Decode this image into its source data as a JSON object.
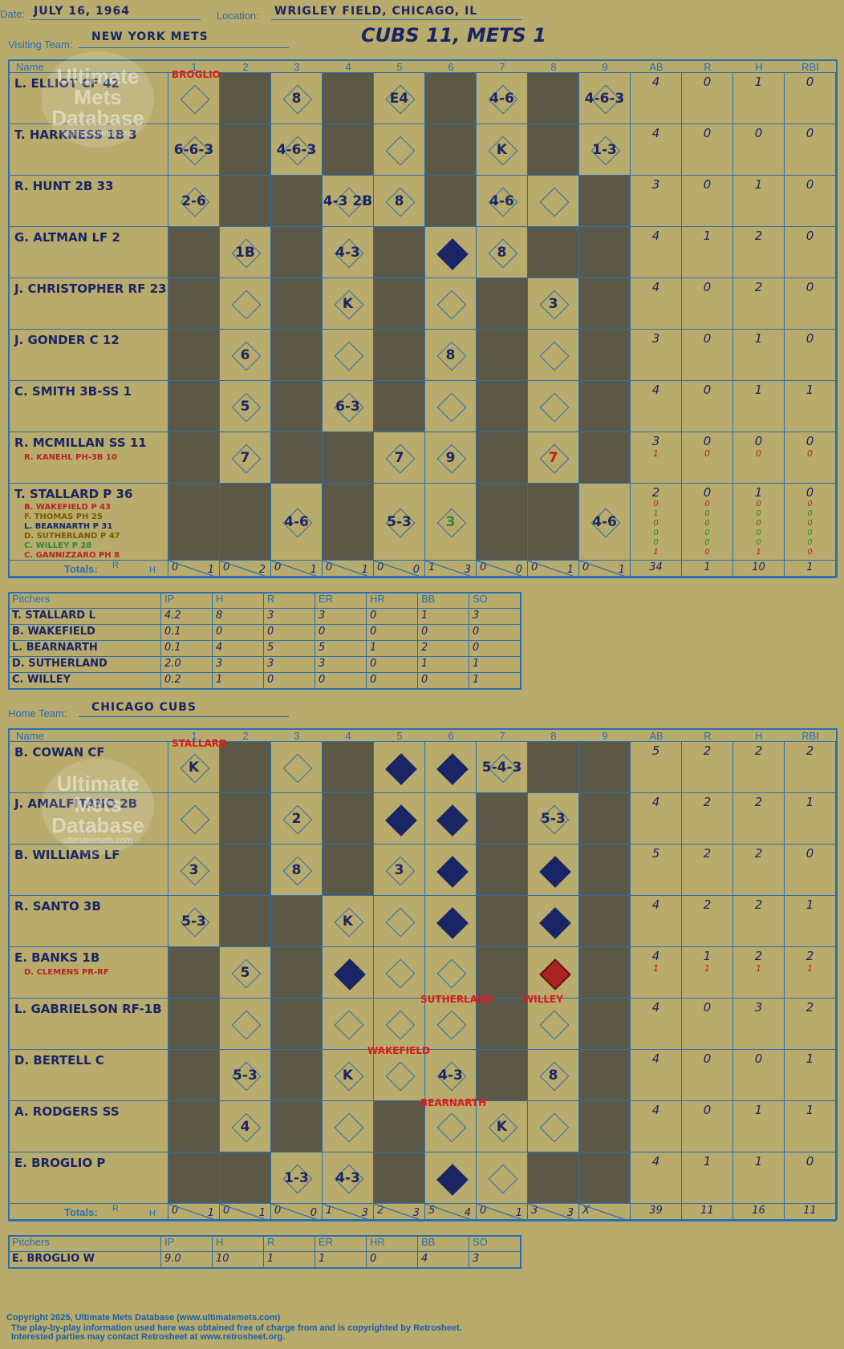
{
  "header": {
    "date_label": "Date:",
    "date": "JULY 16, 1964",
    "location_label": "Location:",
    "location": "WRIGLEY FIELD, CHICAGO, IL",
    "visiting_label": "Visiting Team:",
    "visiting_team": "NEW YORK METS",
    "home_label": "Home Team:",
    "home_team": "CHICAGO CUBS",
    "title": "CUBS 11, METS 1"
  },
  "columns": {
    "name": "Name",
    "innings": [
      "1",
      "2",
      "3",
      "4",
      "5",
      "6",
      "7",
      "8",
      "9"
    ],
    "stats": [
      "AB",
      "R",
      "H",
      "RBI"
    ]
  },
  "totals_label": "Totals:",
  "rh_labels": {
    "r": "R",
    "h": "H"
  },
  "watermark": {
    "line1": "Ultimate",
    "line2": "Mets",
    "line3": "Database",
    "url": "ultimatemets.com"
  },
  "visitors": {
    "starter_red": "BROGLIO",
    "players": [
      {
        "name": "L. ELLIOT CF  42",
        "stats": [
          "4",
          "0",
          "1",
          "0"
        ]
      },
      {
        "name": "T. HARKNESS 1B  3",
        "stats": [
          "4",
          "0",
          "0",
          "0"
        ]
      },
      {
        "name": "R. HUNT 2B  33",
        "stats": [
          "3",
          "0",
          "1",
          "0"
        ]
      },
      {
        "name": "G. ALTMAN LF  2",
        "stats": [
          "4",
          "1",
          "2",
          "0"
        ]
      },
      {
        "name": "J. CHRISTOPHER RF  23",
        "stats": [
          "4",
          "0",
          "2",
          "0"
        ]
      },
      {
        "name": "J. GONDER C  12",
        "stats": [
          "3",
          "0",
          "1",
          "0"
        ]
      },
      {
        "name": "C. SMITH 3B-SS  1",
        "stats": [
          "4",
          "0",
          "1",
          "1"
        ]
      },
      {
        "name": "R. MCMILLAN SS  11",
        "stats": [
          "3",
          "0",
          "0",
          "0"
        ],
        "sub": "R. KANEHL PH-3B  10",
        "sub_stats": [
          "1",
          "0",
          "0",
          "0"
        ]
      },
      {
        "name": "T. STALLARD P  36",
        "stats": [
          "2",
          "0",
          "1",
          "0"
        ],
        "subs": [
          "B. WAKEFIELD P  43",
          "F. THOMAS PH  25",
          "L. BEARNARTH P  31",
          "D. SUTHERLAND P  47",
          "C. WILLEY P  28",
          "C. GANNIZZARO PH  8"
        ],
        "subs_stats": [
          [
            "0",
            "0",
            "0",
            "0"
          ],
          [
            "1",
            "0",
            "0",
            "0"
          ],
          [
            "0",
            "0",
            "0",
            "0"
          ],
          [
            "0",
            "0",
            "0",
            "0"
          ],
          [
            "0",
            "0",
            "0",
            "0"
          ],
          [
            "1",
            "0",
            "1",
            "0"
          ]
        ]
      }
    ],
    "totals": [
      [
        "0",
        "1"
      ],
      [
        "0",
        "2"
      ],
      [
        "0",
        "1"
      ],
      [
        "0",
        "1"
      ],
      [
        "0",
        "0"
      ],
      [
        "1",
        "3"
      ],
      [
        "0",
        "0"
      ],
      [
        "0",
        "1"
      ],
      [
        "0",
        "1"
      ]
    ],
    "totals_stats": [
      "34",
      "1",
      "10",
      "1"
    ],
    "pitchers_header": [
      "Pitchers",
      "IP",
      "H",
      "R",
      "ER",
      "HR",
      "BB",
      "SO"
    ],
    "pitchers": [
      [
        "T. STALLARD  L",
        "4.2",
        "8",
        "3",
        "3",
        "0",
        "1",
        "3"
      ],
      [
        "B. WAKEFIELD",
        "0.1",
        "0",
        "0",
        "0",
        "0",
        "0",
        "0"
      ],
      [
        "L. BEARNARTH",
        "0.1",
        "4",
        "5",
        "5",
        "1",
        "2",
        "0"
      ],
      [
        "D. SUTHERLAND",
        "2.0",
        "3",
        "3",
        "3",
        "0",
        "1",
        "1"
      ],
      [
        "C. WILLEY",
        "0.2",
        "1",
        "0",
        "0",
        "0",
        "0",
        "1"
      ]
    ]
  },
  "home": {
    "starter_red": "STALLARD",
    "players": [
      {
        "name": "B. COWAN CF",
        "stats": [
          "5",
          "2",
          "2",
          "2"
        ]
      },
      {
        "name": "J. AMALFITANO 2B",
        "stats": [
          "4",
          "2",
          "2",
          "1"
        ]
      },
      {
        "name": "B. WILLIAMS LF",
        "stats": [
          "5",
          "2",
          "2",
          "0"
        ]
      },
      {
        "name": "R. SANTO 3B",
        "stats": [
          "4",
          "2",
          "2",
          "1"
        ]
      },
      {
        "name": "E. BANKS 1B",
        "stats": [
          "4",
          "1",
          "2",
          "2"
        ],
        "sub": "D. CLEMENS PR-RF",
        "sub_stats": [
          "1",
          "1",
          "1",
          "1"
        ]
      },
      {
        "name": "L. GABRIELSON RF-1B",
        "stats": [
          "4",
          "0",
          "3",
          "2"
        ]
      },
      {
        "name": "D. BERTELL C",
        "stats": [
          "4",
          "0",
          "0",
          "1"
        ]
      },
      {
        "name": "A. RODGERS SS",
        "stats": [
          "4",
          "0",
          "1",
          "1"
        ]
      },
      {
        "name": "E. BROGLIO P",
        "stats": [
          "4",
          "1",
          "1",
          "0"
        ]
      }
    ],
    "relief_labels": [
      "WAKEFIELD",
      "BEARNARTH",
      "SUTHERLAND",
      "WILLEY"
    ],
    "totals": [
      [
        "0",
        "1"
      ],
      [
        "0",
        "1"
      ],
      [
        "0",
        "0"
      ],
      [
        "1",
        "3"
      ],
      [
        "2",
        "3"
      ],
      [
        "5",
        "4"
      ],
      [
        "0",
        "1"
      ],
      [
        "3",
        "3"
      ],
      [
        "X",
        ""
      ]
    ],
    "totals_stats": [
      "39",
      "11",
      "16",
      "11"
    ],
    "pitchers_header": [
      "Pitchers",
      "IP",
      "H",
      "R",
      "ER",
      "HR",
      "BB",
      "SO"
    ],
    "pitchers": [
      [
        "E. BROGLIO  W",
        "9.0",
        "10",
        "1",
        "1",
        "0",
        "4",
        "3"
      ]
    ]
  },
  "footer": {
    "line1": "Copyright 2025, Ultimate Mets Database (www.ultimatemets.com)",
    "line2": "The play-by-play information used here was obtained free of charge from and is copyrighted by Retrosheet.",
    "line3": "Interested parties may contact Retrosheet at www.retrosheet.org."
  }
}
